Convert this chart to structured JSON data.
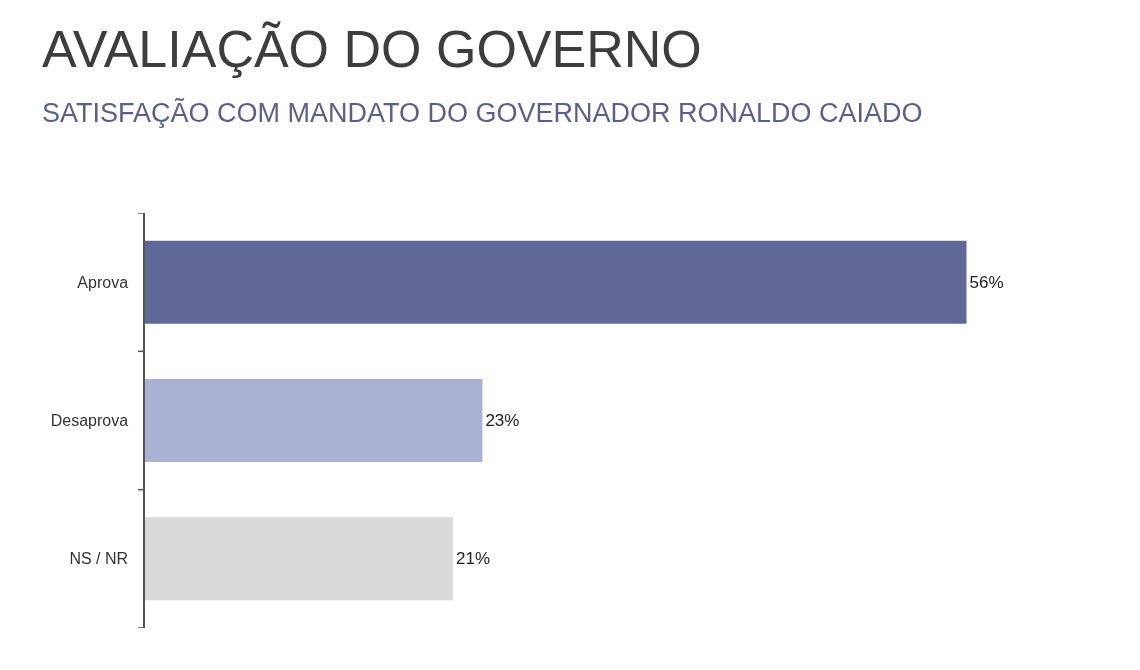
{
  "chart_data": {
    "type": "bar",
    "orientation": "horizontal",
    "title": "AVALIAÇÃO DO GOVERNO",
    "subtitle": "SATISFAÇÃO COM MANDATO DO GOVERNADOR RONALDO CAIADO",
    "categories": [
      "Aprova",
      "Desaprova",
      "NS / NR"
    ],
    "values": [
      56,
      23,
      21
    ],
    "colors": [
      "#5f6896",
      "#aab2d3",
      "#d9d9d9"
    ],
    "value_labels": [
      "56%",
      "23%",
      "21%"
    ]
  }
}
